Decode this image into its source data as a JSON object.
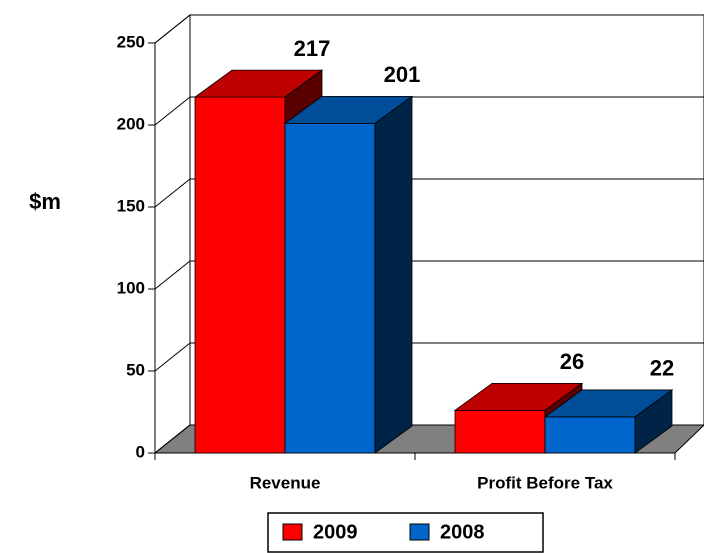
{
  "chart_data": {
    "type": "bar3d",
    "ylabel": "$m",
    "categories": [
      "Revenue",
      "Profit Before Tax"
    ],
    "series": [
      {
        "name": "2009",
        "color": "#ff0000",
        "values": [
          217,
          26
        ]
      },
      {
        "name": "2008",
        "color": "#0066cc",
        "values": [
          201,
          22
        ]
      }
    ],
    "ylim": [
      0,
      250
    ],
    "yticks": [
      0,
      50,
      100,
      150,
      200,
      250
    ],
    "grid": true
  }
}
